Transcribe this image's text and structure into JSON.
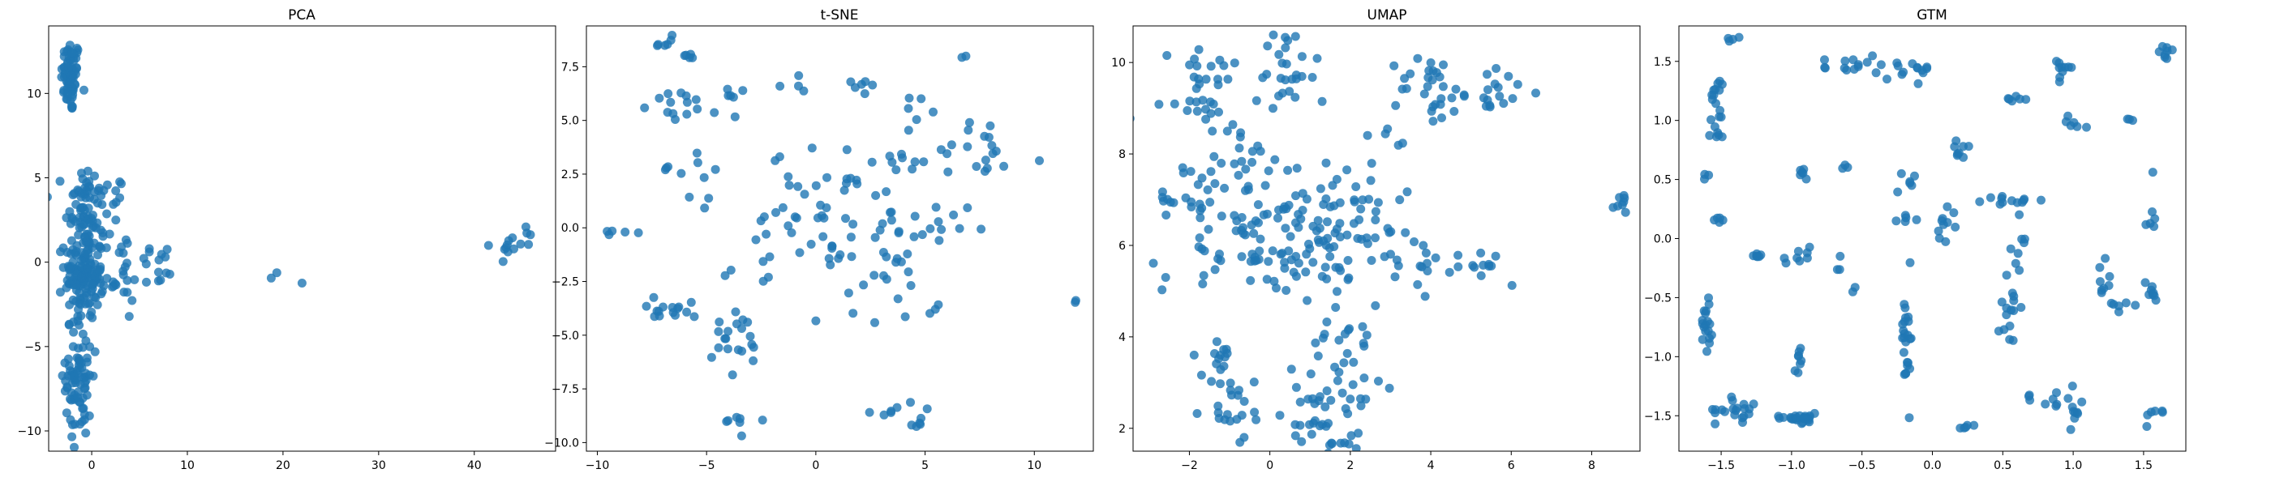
{
  "colors": {
    "point": "#1f77b4",
    "axes": "#000000",
    "background": "#ffffff"
  },
  "chart_data": [
    {
      "type": "scatter",
      "title": "PCA",
      "xlabel": "",
      "ylabel": "",
      "xlim": [
        -4.5,
        48.5
      ],
      "ylim": [
        -11.2,
        14.0
      ],
      "xticks": [
        0,
        10,
        20,
        30,
        40
      ],
      "yticks": [
        -10,
        -5,
        0,
        5,
        10
      ],
      "grid": false,
      "clusters": [
        {
          "cx": -2.2,
          "cy": 11.0,
          "sx": 0.5,
          "sy": 1.1,
          "n": 70
        },
        {
          "cx": -1.0,
          "cy": 3.2,
          "sx": 0.9,
          "sy": 1.4,
          "n": 60
        },
        {
          "cx": -0.8,
          "cy": -0.7,
          "sx": 1.0,
          "sy": 1.3,
          "n": 140
        },
        {
          "cx": -1.3,
          "cy": -6.8,
          "sx": 0.7,
          "sy": 1.8,
          "n": 80
        },
        {
          "cx": 1.5,
          "cy": 2.5,
          "sx": 1.2,
          "sy": 1.6,
          "n": 25
        },
        {
          "cx": 3.0,
          "cy": -1.2,
          "sx": 1.0,
          "sy": 0.7,
          "n": 18
        },
        {
          "cx": 7.0,
          "cy": -0.3,
          "sx": 1.3,
          "sy": 0.8,
          "n": 14
        },
        {
          "cx": 17.8,
          "cy": -0.9,
          "sx": 1.5,
          "sy": 0.3,
          "n": 3
        },
        {
          "cx": 44.0,
          "cy": 1.2,
          "sx": 1.2,
          "sy": 0.5,
          "n": 14
        }
      ]
    },
    {
      "type": "scatter",
      "title": "t-SNE",
      "xlabel": "",
      "ylabel": "",
      "xlim": [
        -10.5,
        12.7
      ],
      "ylim": [
        -10.4,
        9.4
      ],
      "xticks": [
        -10,
        -5,
        0,
        5,
        10
      ],
      "yticks": [
        -10.0,
        -7.5,
        -5.0,
        -2.5,
        0.0,
        2.5,
        5.0,
        7.5
      ],
      "grid": false,
      "clusters": [
        {
          "cx": -6.8,
          "cy": 8.6,
          "sx": 0.2,
          "sy": 0.3,
          "n": 6
        },
        {
          "cx": -5.8,
          "cy": 7.9,
          "sx": 0.3,
          "sy": 0.1,
          "n": 5
        },
        {
          "cx": -5.5,
          "cy": 5.8,
          "sx": 1.0,
          "sy": 0.3,
          "n": 20
        },
        {
          "cx": -6.8,
          "cy": 2.8,
          "sx": 0.1,
          "sy": 0.1,
          "n": 3
        },
        {
          "cx": -5.2,
          "cy": 2.0,
          "sx": 0.6,
          "sy": 0.7,
          "n": 8
        },
        {
          "cx": -6.6,
          "cy": -3.8,
          "sx": 1.2,
          "sy": 0.3,
          "n": 15
        },
        {
          "cx": -9.0,
          "cy": -0.2,
          "sx": 0.5,
          "sy": 0.15,
          "n": 5
        },
        {
          "cx": -3.6,
          "cy": -5.5,
          "sx": 0.8,
          "sy": 0.8,
          "n": 20
        },
        {
          "cx": -3.4,
          "cy": -9.0,
          "sx": 0.5,
          "sy": 0.25,
          "n": 7
        },
        {
          "cx": -2.5,
          "cy": -1.0,
          "sx": 0.8,
          "sy": 1.2,
          "n": 10
        },
        {
          "cx": 0.5,
          "cy": 1.0,
          "sx": 1.3,
          "sy": 1.3,
          "n": 40
        },
        {
          "cx": 2.5,
          "cy": -1.5,
          "sx": 1.2,
          "sy": 1.5,
          "n": 30
        },
        {
          "cx": 2.3,
          "cy": 6.7,
          "sx": 0.5,
          "sy": 0.3,
          "n": 6
        },
        {
          "cx": 3.6,
          "cy": -8.4,
          "sx": 0.5,
          "sy": 0.2,
          "n": 7
        },
        {
          "cx": 4.8,
          "cy": -9.1,
          "sx": 0.3,
          "sy": 0.15,
          "n": 5
        },
        {
          "cx": 4.6,
          "cy": 3.1,
          "sx": 1.0,
          "sy": 0.5,
          "n": 10
        },
        {
          "cx": 4.5,
          "cy": 5.7,
          "sx": 0.5,
          "sy": 0.3,
          "n": 6
        },
        {
          "cx": 5.8,
          "cy": 0.2,
          "sx": 0.8,
          "sy": 0.5,
          "n": 12
        },
        {
          "cx": 7.9,
          "cy": 3.2,
          "sx": 0.8,
          "sy": 0.4,
          "n": 12
        },
        {
          "cx": 7.6,
          "cy": 4.6,
          "sx": 0.3,
          "sy": 0.2,
          "n": 5
        },
        {
          "cx": 6.8,
          "cy": 8.0,
          "sx": 0.1,
          "sy": 0.1,
          "n": 2
        },
        {
          "cx": 11.9,
          "cy": -3.4,
          "sx": 0.1,
          "sy": 0.1,
          "n": 2
        },
        {
          "cx": 5.5,
          "cy": -3.8,
          "sx": 0.2,
          "sy": 0.2,
          "n": 3
        },
        {
          "cx": -0.7,
          "cy": 6.5,
          "sx": 0.5,
          "sy": 0.5,
          "n": 4
        }
      ]
    },
    {
      "type": "scatter",
      "title": "UMAP",
      "xlabel": "",
      "ylabel": "",
      "xlim": [
        -3.4,
        9.2
      ],
      "ylim": [
        1.5,
        10.8
      ],
      "xticks": [
        -2,
        0,
        2,
        4,
        6,
        8
      ],
      "yticks": [
        2,
        4,
        6,
        8,
        10
      ],
      "grid": false,
      "clusters": [
        {
          "cx": -2.5,
          "cy": 8.9,
          "sx": 0.5,
          "sy": 0.15,
          "n": 10
        },
        {
          "cx": -2.6,
          "cy": 6.9,
          "sx": 0.5,
          "sy": 0.2,
          "n": 10
        },
        {
          "cx": -1.6,
          "cy": 9.7,
          "sx": 0.4,
          "sy": 0.4,
          "n": 20
        },
        {
          "cx": -1.0,
          "cy": 7.2,
          "sx": 0.9,
          "sy": 0.9,
          "n": 40
        },
        {
          "cx": -0.8,
          "cy": 5.8,
          "sx": 0.9,
          "sy": 0.4,
          "n": 25
        },
        {
          "cx": 0.4,
          "cy": 9.6,
          "sx": 0.4,
          "sy": 0.7,
          "n": 30
        },
        {
          "cx": 0.4,
          "cy": 6.6,
          "sx": 1.0,
          "sy": 1.0,
          "n": 60
        },
        {
          "cx": 1.6,
          "cy": 5.9,
          "sx": 0.8,
          "sy": 0.6,
          "n": 30
        },
        {
          "cx": 2.3,
          "cy": 7.0,
          "sx": 0.5,
          "sy": 0.6,
          "n": 25
        },
        {
          "cx": 4.0,
          "cy": 9.4,
          "sx": 0.4,
          "sy": 0.4,
          "n": 25
        },
        {
          "cx": 5.5,
          "cy": 9.4,
          "sx": 0.5,
          "sy": 0.3,
          "n": 20
        },
        {
          "cx": 3.3,
          "cy": 5.6,
          "sx": 0.6,
          "sy": 0.4,
          "n": 15
        },
        {
          "cx": 5.3,
          "cy": 5.5,
          "sx": 0.5,
          "sy": 0.2,
          "n": 15
        },
        {
          "cx": -1.6,
          "cy": 3.6,
          "sx": 0.4,
          "sy": 0.3,
          "n": 10
        },
        {
          "cx": -0.9,
          "cy": 2.6,
          "sx": 0.4,
          "sy": 0.5,
          "n": 25
        },
        {
          "cx": 0.9,
          "cy": 2.1,
          "sx": 0.5,
          "sy": 0.4,
          "n": 20
        },
        {
          "cx": 2.0,
          "cy": 3.4,
          "sx": 0.6,
          "sy": 0.6,
          "n": 35
        },
        {
          "cx": 1.8,
          "cy": 1.8,
          "sx": 0.3,
          "sy": 0.2,
          "n": 10
        },
        {
          "cx": 2.9,
          "cy": 8.3,
          "sx": 0.3,
          "sy": 0.15,
          "n": 5
        },
        {
          "cx": 8.8,
          "cy": 6.85,
          "sx": 0.1,
          "sy": 0.15,
          "n": 8
        }
      ]
    },
    {
      "type": "scatter",
      "title": "GTM",
      "xlabel": "",
      "ylabel": "",
      "xlim": [
        -1.8,
        1.8
      ],
      "ylim": [
        -1.8,
        1.8
      ],
      "xticks": [
        -1.5,
        -1.0,
        -0.5,
        0.0,
        0.5,
        1.0,
        1.5
      ],
      "yticks": [
        -1.5,
        -1.0,
        -0.5,
        0.0,
        0.5,
        1.0,
        1.5
      ],
      "grid": false,
      "clusters": [
        {
          "cx": -1.52,
          "cy": 1.25,
          "sx": 0.03,
          "sy": 0.05,
          "n": 10
        },
        {
          "cx": -1.53,
          "cy": 0.95,
          "sx": 0.03,
          "sy": 0.08,
          "n": 10
        },
        {
          "cx": -1.42,
          "cy": 1.69,
          "sx": 0.04,
          "sy": 0.01,
          "n": 4
        },
        {
          "cx": -1.6,
          "cy": 0.53,
          "sx": 0.02,
          "sy": 0.02,
          "n": 3
        },
        {
          "cx": -1.52,
          "cy": 0.15,
          "sx": 0.02,
          "sy": 0.02,
          "n": 5
        },
        {
          "cx": -1.25,
          "cy": -0.14,
          "sx": 0.05,
          "sy": 0.01,
          "n": 6
        },
        {
          "cx": -1.6,
          "cy": -0.65,
          "sx": 0.02,
          "sy": 0.15,
          "n": 18
        },
        {
          "cx": -1.38,
          "cy": -1.45,
          "sx": 0.08,
          "sy": 0.05,
          "n": 20
        },
        {
          "cx": -0.95,
          "cy": -1.52,
          "sx": 0.08,
          "sy": 0.02,
          "n": 25
        },
        {
          "cx": -0.95,
          "cy": -1.0,
          "sx": 0.03,
          "sy": 0.06,
          "n": 8
        },
        {
          "cx": -0.92,
          "cy": 0.55,
          "sx": 0.02,
          "sy": 0.04,
          "n": 6
        },
        {
          "cx": -0.97,
          "cy": -0.15,
          "sx": 0.05,
          "sy": 0.05,
          "n": 8
        },
        {
          "cx": -0.55,
          "cy": -0.43,
          "sx": 0.02,
          "sy": 0.02,
          "n": 2
        },
        {
          "cx": -0.65,
          "cy": -0.2,
          "sx": 0.03,
          "sy": 0.03,
          "n": 3
        },
        {
          "cx": -0.62,
          "cy": 1.45,
          "sx": 0.08,
          "sy": 0.05,
          "n": 12
        },
        {
          "cx": -0.6,
          "cy": 0.62,
          "sx": 0.02,
          "sy": 0.02,
          "n": 3
        },
        {
          "cx": -0.18,
          "cy": 1.45,
          "sx": 0.12,
          "sy": 0.06,
          "n": 15
        },
        {
          "cx": -0.15,
          "cy": 0.5,
          "sx": 0.03,
          "sy": 0.05,
          "n": 6
        },
        {
          "cx": -0.18,
          "cy": 0.15,
          "sx": 0.04,
          "sy": 0.02,
          "n": 5
        },
        {
          "cx": -0.18,
          "cy": -0.85,
          "sx": 0.02,
          "sy": 0.25,
          "n": 25
        },
        {
          "cx": 0.25,
          "cy": -1.58,
          "sx": 0.03,
          "sy": 0.01,
          "n": 5
        },
        {
          "cx": 0.1,
          "cy": 0.15,
          "sx": 0.06,
          "sy": 0.08,
          "n": 10
        },
        {
          "cx": 0.2,
          "cy": 0.7,
          "sx": 0.03,
          "sy": 0.06,
          "n": 8
        },
        {
          "cx": 0.5,
          "cy": 0.32,
          "sx": 0.15,
          "sy": 0.02,
          "n": 12
        },
        {
          "cx": 0.58,
          "cy": 1.18,
          "sx": 0.06,
          "sy": 0.01,
          "n": 6
        },
        {
          "cx": 0.92,
          "cy": 1.45,
          "sx": 0.03,
          "sy": 0.08,
          "n": 10
        },
        {
          "cx": 0.98,
          "cy": 0.98,
          "sx": 0.05,
          "sy": 0.03,
          "n": 6
        },
        {
          "cx": 0.55,
          "cy": -0.55,
          "sx": 0.04,
          "sy": 0.2,
          "n": 18
        },
        {
          "cx": 0.7,
          "cy": -1.35,
          "sx": 0.02,
          "sy": 0.03,
          "n": 3
        },
        {
          "cx": 0.98,
          "cy": -1.45,
          "sx": 0.08,
          "sy": 0.08,
          "n": 15
        },
        {
          "cx": 1.2,
          "cy": -0.3,
          "sx": 0.05,
          "sy": 0.08,
          "n": 8
        },
        {
          "cx": 1.35,
          "cy": -0.55,
          "sx": 0.06,
          "sy": 0.03,
          "n": 6
        },
        {
          "cx": 1.55,
          "cy": -0.5,
          "sx": 0.03,
          "sy": 0.08,
          "n": 8
        },
        {
          "cx": 1.4,
          "cy": 1.0,
          "sx": 0.04,
          "sy": 0.02,
          "n": 3
        },
        {
          "cx": 1.65,
          "cy": 1.57,
          "sx": 0.03,
          "sy": 0.04,
          "n": 8
        },
        {
          "cx": 1.55,
          "cy": 0.2,
          "sx": 0.02,
          "sy": 0.2,
          "n": 6
        },
        {
          "cx": 1.6,
          "cy": -1.5,
          "sx": 0.05,
          "sy": 0.1,
          "n": 6
        },
        {
          "cx": 0.65,
          "cy": 0.05,
          "sx": 0.03,
          "sy": 0.1,
          "n": 5
        }
      ]
    }
  ]
}
